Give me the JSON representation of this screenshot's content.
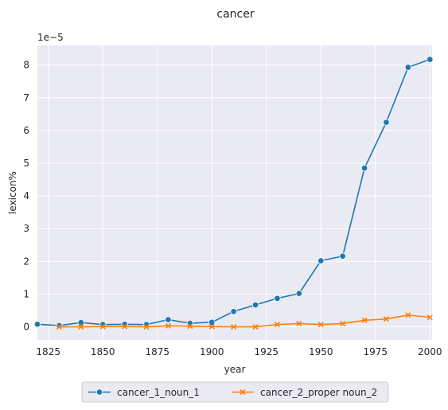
{
  "chart_data": {
    "type": "line",
    "title": "cancer",
    "xlabel": "year",
    "ylabel": "lexicon%",
    "y_offset_label": "1e−5",
    "xlim": [
      1820,
      2001
    ],
    "ylim": [
      -0.4,
      8.6
    ],
    "x_ticks": [
      1825,
      1850,
      1875,
      1900,
      1925,
      1950,
      1975,
      2000
    ],
    "y_ticks": [
      0,
      1,
      2,
      3,
      4,
      5,
      6,
      7,
      8
    ],
    "grid": true,
    "legend_position": "bottom-center",
    "series": [
      {
        "name": "cancer_1_noun_1",
        "color": "#1f77b4",
        "marker": "circle",
        "x": [
          1820,
          1830,
          1840,
          1850,
          1860,
          1870,
          1880,
          1890,
          1900,
          1910,
          1920,
          1930,
          1940,
          1950,
          1960,
          1970,
          1980,
          1990,
          2000
        ],
        "y": [
          0.08,
          0.04,
          0.13,
          0.07,
          0.08,
          0.07,
          0.22,
          0.11,
          0.14,
          0.47,
          0.67,
          0.87,
          1.02,
          2.02,
          2.16,
          4.85,
          6.25,
          7.93,
          8.17
        ]
      },
      {
        "name": "cancer_2_proper noun_2",
        "color": "#ff7f0e",
        "marker": "x",
        "x": [
          1830,
          1840,
          1850,
          1860,
          1870,
          1880,
          1890,
          1900,
          1910,
          1920,
          1930,
          1940,
          1950,
          1960,
          1970,
          1980,
          1990,
          2000
        ],
        "y": [
          0.0,
          0.0,
          0.01,
          0.01,
          0.0,
          0.03,
          0.02,
          0.01,
          0.0,
          0.0,
          0.07,
          0.1,
          0.07,
          0.1,
          0.2,
          0.24,
          0.36,
          0.29
        ]
      }
    ]
  }
}
